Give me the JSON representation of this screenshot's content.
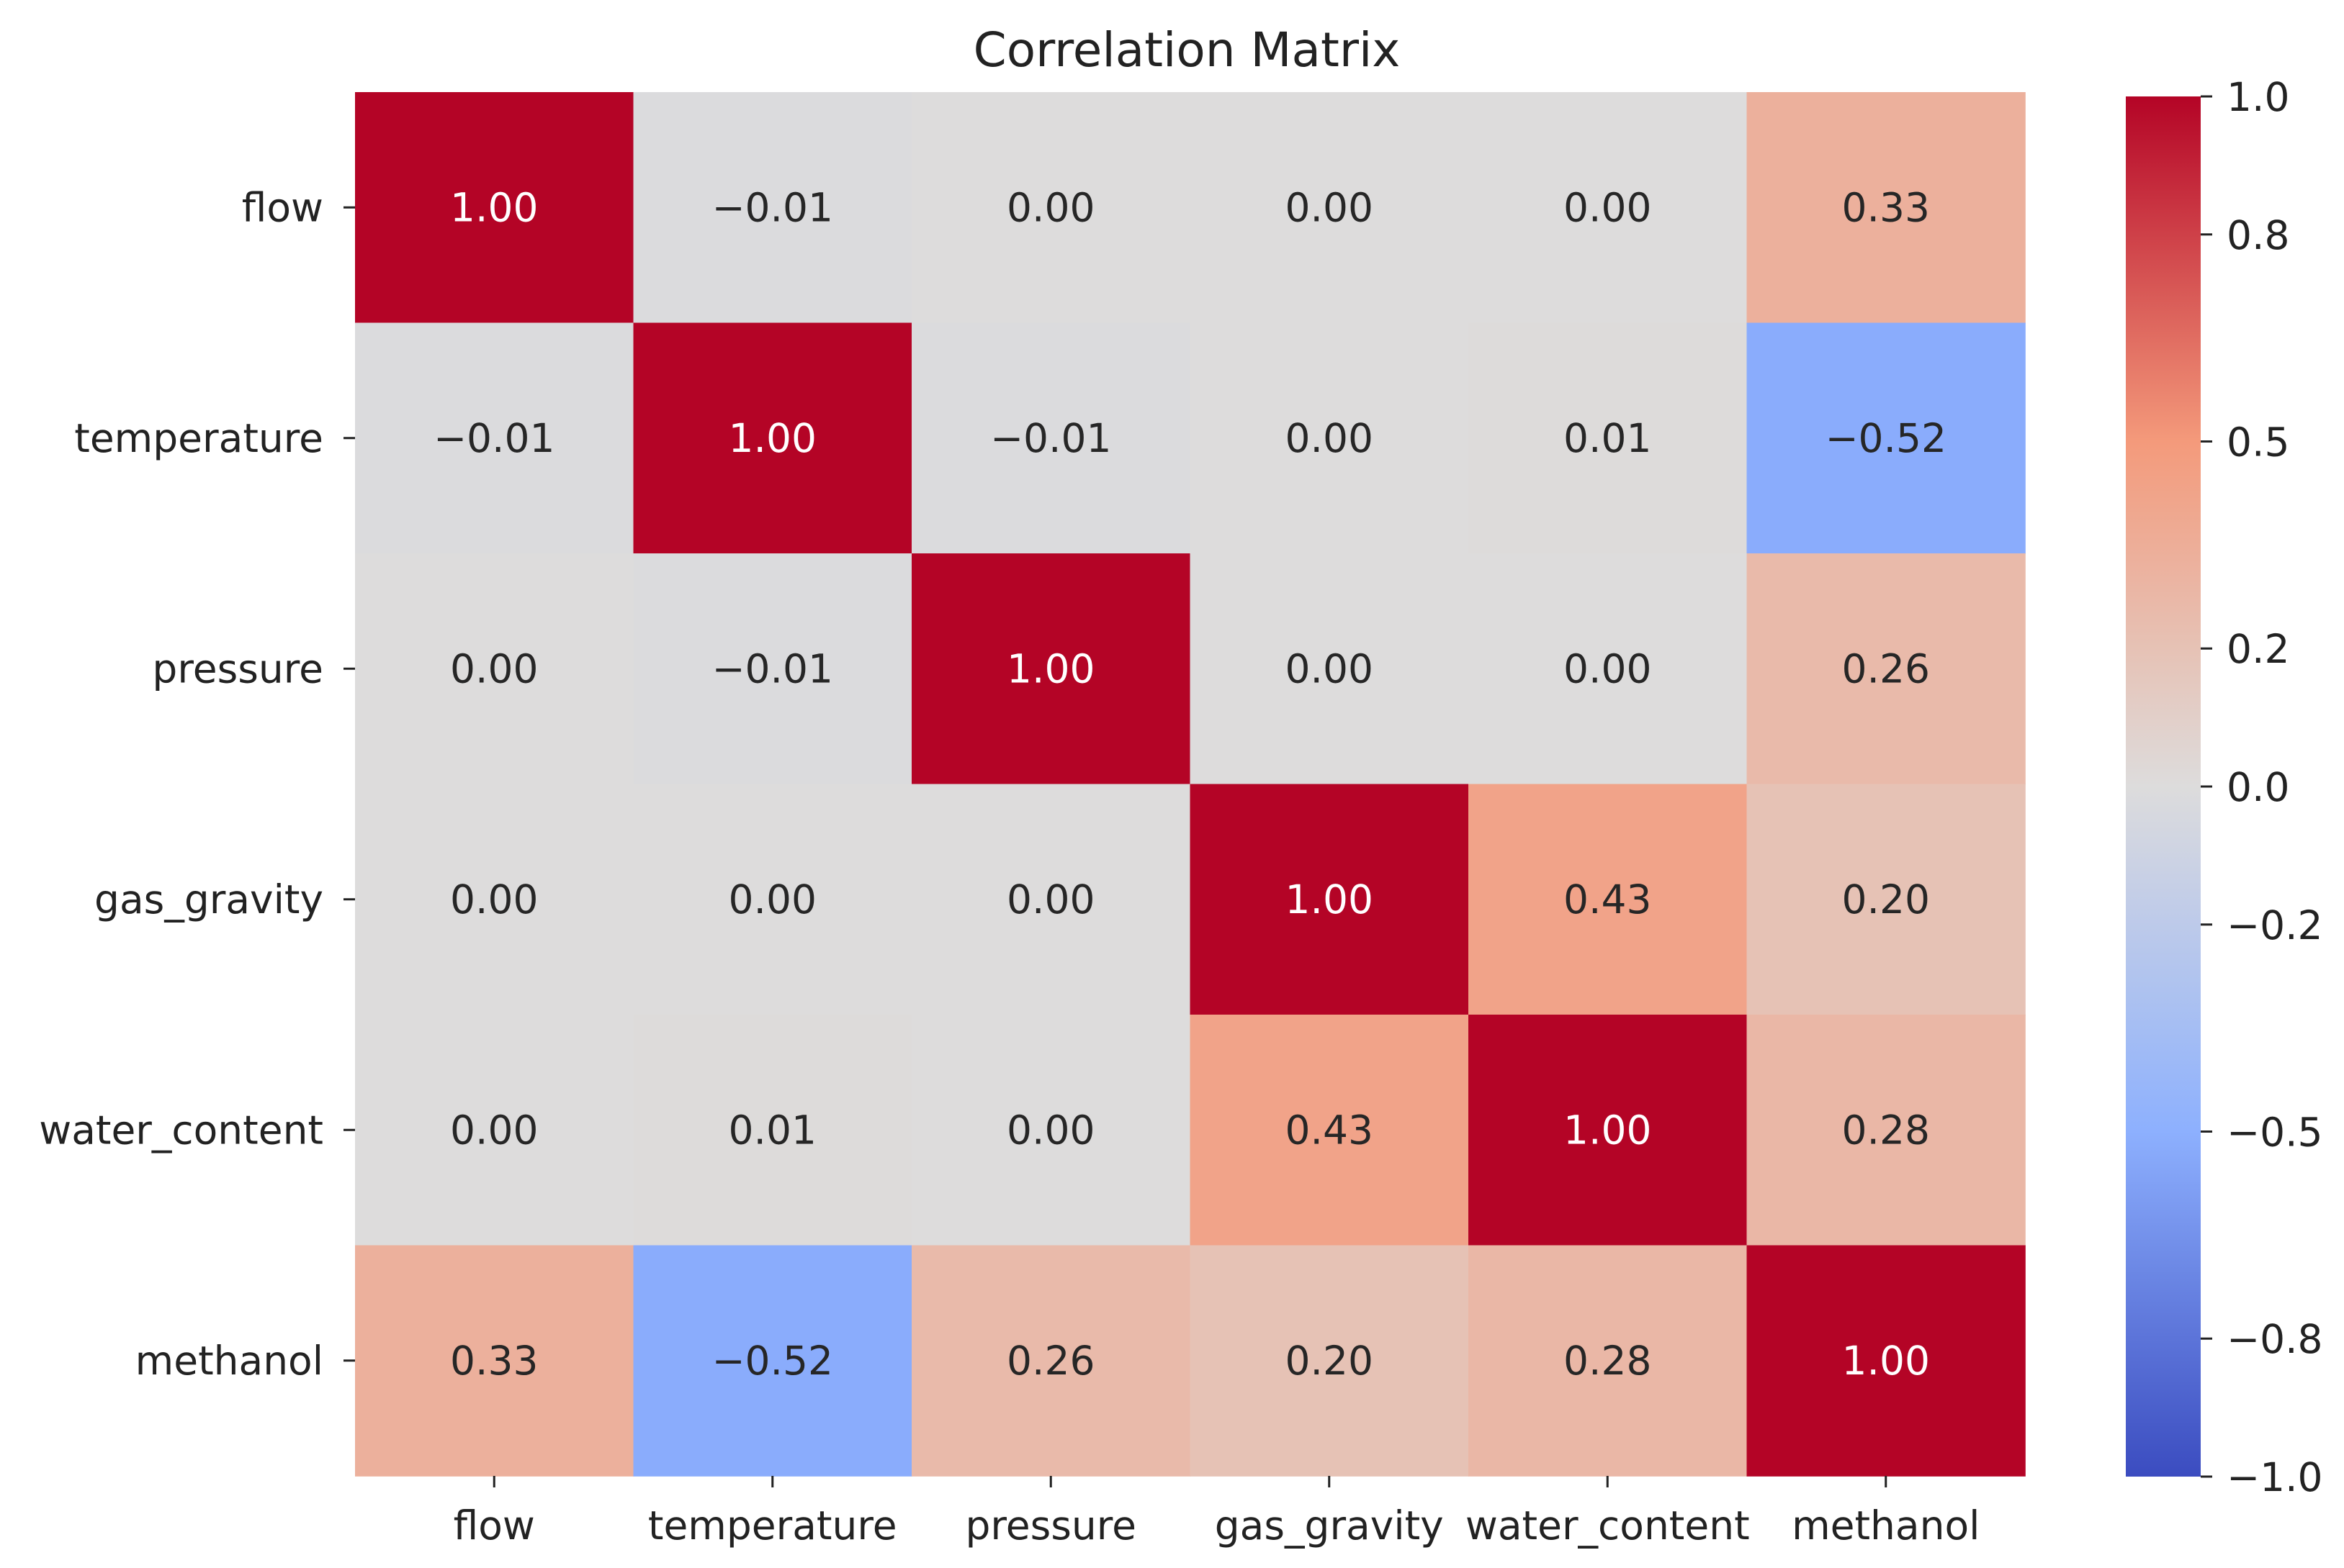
{
  "chart_data": {
    "type": "heatmap",
    "title": "Correlation Matrix",
    "xlabel": "",
    "ylabel": "",
    "row_labels": [
      "flow",
      "temperature",
      "pressure",
      "gas_gravity",
      "water_content",
      "methanol"
    ],
    "col_labels": [
      "flow",
      "temperature",
      "pressure",
      "gas_gravity",
      "water_content",
      "methanol"
    ],
    "values": [
      [
        1.0,
        -0.01,
        0.0,
        0.0,
        0.0,
        0.33
      ],
      [
        -0.01,
        1.0,
        -0.01,
        0.0,
        0.01,
        -0.52
      ],
      [
        0.0,
        -0.01,
        1.0,
        0.0,
        0.0,
        0.26
      ],
      [
        0.0,
        0.0,
        0.0,
        1.0,
        0.43,
        0.2
      ],
      [
        0.0,
        0.01,
        0.0,
        0.43,
        1.0,
        0.28
      ],
      [
        0.33,
        -0.52,
        0.26,
        0.2,
        0.28,
        1.0
      ]
    ],
    "cell_labels": [
      [
        "1.00",
        "−0.01",
        "0.00",
        "0.00",
        "0.00",
        "0.33"
      ],
      [
        "−0.01",
        "1.00",
        "−0.01",
        "0.00",
        "0.01",
        "−0.52"
      ],
      [
        "0.00",
        "−0.01",
        "1.00",
        "0.00",
        "0.00",
        "0.26"
      ],
      [
        "0.00",
        "0.00",
        "0.00",
        "1.00",
        "0.43",
        "0.20"
      ],
      [
        "0.00",
        "0.01",
        "0.00",
        "0.43",
        "1.00",
        "0.28"
      ],
      [
        "0.33",
        "−0.52",
        "0.26",
        "0.20",
        "0.28",
        "1.00"
      ]
    ],
    "colormap": "coolwarm",
    "vmin": -1.0,
    "vmax": 1.0,
    "colorbar": {
      "ticks": [
        1.0,
        0.8,
        0.5,
        0.2,
        0.0,
        -0.2,
        -0.5,
        -0.8,
        -1.0
      ],
      "tick_labels": [
        "1.0",
        "0.8",
        "0.5",
        "0.2",
        "0.0",
        "−0.2",
        "−0.5",
        "−0.8",
        "−1.0"
      ],
      "placement": "right"
    }
  }
}
